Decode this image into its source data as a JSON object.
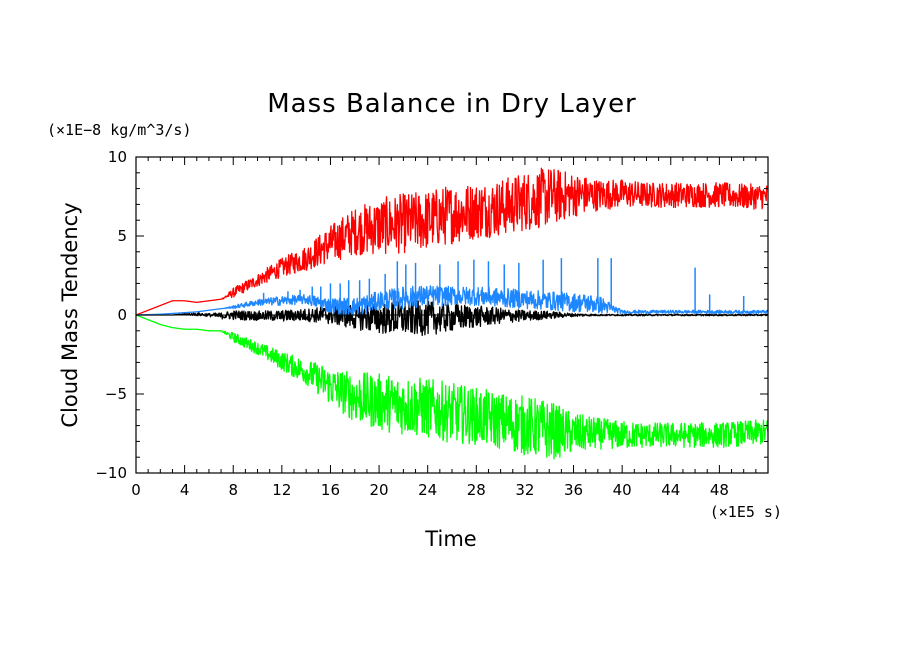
{
  "chart_data": {
    "type": "line",
    "title": "Mass Balance in Dry Layer",
    "xlabel": "Time",
    "ylabel": "Cloud Mass Tendency",
    "x_unit": "(×1E5 s)",
    "y_unit": "(×1E−8 kg/m^3/s)",
    "xlim": [
      0,
      52
    ],
    "ylim": [
      -10,
      10
    ],
    "x_ticks": [
      0,
      4,
      8,
      12,
      16,
      20,
      24,
      28,
      32,
      36,
      40,
      44,
      48
    ],
    "x_tick_labels": [
      "0",
      "4",
      "8",
      "12",
      "16",
      "20",
      "24",
      "28",
      "32",
      "36",
      "40",
      "44",
      "48"
    ],
    "y_ticks": [
      -10,
      -5,
      0,
      5,
      10
    ],
    "y_tick_labels": [
      "−10",
      "−5",
      "0",
      "5",
      "10"
    ],
    "grid": false,
    "legend": "none",
    "x": [
      0,
      2,
      3,
      4,
      5,
      6,
      7,
      8,
      10,
      12,
      14,
      16,
      18,
      20,
      22,
      24,
      26,
      28,
      30,
      32,
      34,
      36,
      38,
      40,
      42,
      44,
      46,
      48,
      50,
      52
    ],
    "series": [
      {
        "color": "#ff0000",
        "values": [
          0,
          0.6,
          0.9,
          0.9,
          0.8,
          0.9,
          1.0,
          1.4,
          2.2,
          3.0,
          3.6,
          4.5,
          5.3,
          5.6,
          5.8,
          6.0,
          6.4,
          6.6,
          6.8,
          7.2,
          7.5,
          7.6,
          7.6,
          7.7,
          7.6,
          7.6,
          7.6,
          7.6,
          7.5,
          7.5
        ],
        "spread": [
          0,
          0,
          0,
          0,
          0,
          0,
          0,
          0.3,
          0.4,
          0.6,
          0.8,
          1.2,
          1.5,
          1.8,
          1.9,
          1.9,
          1.9,
          1.8,
          1.8,
          1.9,
          1.9,
          1.4,
          1.0,
          0.9,
          0.8,
          0.8,
          0.8,
          0.8,
          0.8,
          0.8
        ]
      },
      {
        "color": "#00ff00",
        "values": [
          0,
          -0.6,
          -0.8,
          -0.9,
          -0.9,
          -1.0,
          -1.0,
          -1.4,
          -2.1,
          -2.9,
          -3.6,
          -4.5,
          -5.2,
          -5.5,
          -5.7,
          -5.9,
          -6.2,
          -6.4,
          -6.7,
          -7.0,
          -7.3,
          -7.5,
          -7.5,
          -7.6,
          -7.6,
          -7.6,
          -7.6,
          -7.6,
          -7.5,
          -7.4
        ],
        "spread": [
          0,
          0,
          0,
          0,
          0,
          0,
          0,
          0.3,
          0.4,
          0.6,
          0.8,
          1.2,
          1.6,
          1.8,
          1.9,
          1.9,
          1.9,
          1.8,
          1.8,
          1.9,
          1.9,
          1.3,
          1.0,
          0.9,
          0.8,
          0.8,
          0.8,
          0.8,
          0.8,
          0.8
        ]
      },
      {
        "color": "#000000",
        "values": [
          0,
          0,
          0,
          0.05,
          0.05,
          0,
          -0.05,
          0,
          -0.05,
          -0.05,
          0,
          0,
          -0.1,
          -0.2,
          -0.2,
          -0.2,
          -0.15,
          -0.1,
          -0.05,
          -0.05,
          0,
          0,
          0,
          0,
          0,
          0,
          0,
          0,
          0,
          0
        ],
        "spread": [
          0,
          0,
          0,
          0.05,
          0.1,
          0.1,
          0.2,
          0.3,
          0.3,
          0.35,
          0.4,
          0.6,
          0.8,
          1.0,
          1.1,
          1.1,
          0.9,
          0.7,
          0.5,
          0.35,
          0.25,
          0.1,
          0.05,
          0.05,
          0.05,
          0.05,
          0.05,
          0.05,
          0.05,
          0.05
        ]
      },
      {
        "color": "#1e87ff",
        "values": [
          0,
          0.05,
          0.1,
          0.15,
          0.2,
          0.3,
          0.4,
          0.5,
          0.8,
          0.9,
          1.0,
          0.6,
          0.5,
          0.9,
          1.1,
          1.2,
          1.2,
          1.2,
          1.1,
          1.0,
          0.9,
          0.8,
          0.7,
          0.2,
          0.2,
          0.2,
          0.2,
          0.2,
          0.2,
          0.2
        ],
        "spread": [
          0,
          0,
          0,
          0,
          0,
          0,
          0,
          0.1,
          0.2,
          0.3,
          0.3,
          0.5,
          0.6,
          0.6,
          0.7,
          0.7,
          0.6,
          0.6,
          0.6,
          0.6,
          0.6,
          0.6,
          0.6,
          0.1,
          0.1,
          0.1,
          0.1,
          0.1,
          0.1,
          0.1
        ],
        "spike_times": [
          10.5,
          12.5,
          13.5,
          14.5,
          15.2,
          16.0,
          16.8,
          17.5,
          18.4,
          19.2,
          20.5,
          21.5,
          22.2,
          23.0,
          25.0,
          26.5,
          27.8,
          29.0,
          30.3,
          31.5,
          33.5,
          35.0,
          38.0,
          39.1,
          46.0,
          47.2,
          50.0
        ],
        "spike_values": [
          1.4,
          1.5,
          1.6,
          1.8,
          1.8,
          2.0,
          2.0,
          2.2,
          2.2,
          2.3,
          2.6,
          3.4,
          3.2,
          3.3,
          3.2,
          3.4,
          3.5,
          3.4,
          3.2,
          3.3,
          3.5,
          3.6,
          3.6,
          3.6,
          3.0,
          1.3,
          1.2
        ]
      }
    ]
  }
}
